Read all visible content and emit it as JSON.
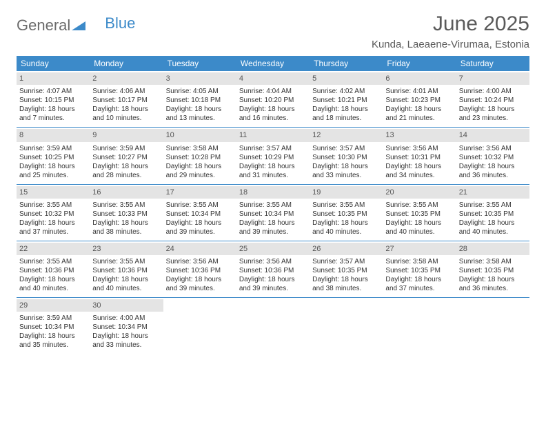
{
  "logo": {
    "part1": "General",
    "part2": "Blue"
  },
  "title": "June 2025",
  "location": "Kunda, Laeaene-Virumaa, Estonia",
  "weekdays": [
    "Sunday",
    "Monday",
    "Tuesday",
    "Wednesday",
    "Thursday",
    "Friday",
    "Saturday"
  ],
  "colors": {
    "header_bg": "#3c8ac9",
    "header_text": "#ffffff",
    "daynum_bg": "#e4e4e4",
    "text": "#333333",
    "rule": "#3c8ac9",
    "background": "#ffffff"
  },
  "fonts": {
    "title_size_pt": 30,
    "subtitle_size_pt": 15,
    "weekday_size_pt": 12,
    "cell_size_pt": 10
  },
  "cell_template": {
    "sunrise_prefix": "Sunrise: ",
    "sunset_prefix": "Sunset: ",
    "daylight_prefix": "Daylight: ",
    "daylight_joiner": " and ",
    "daylight_hours_word": " hours",
    "daylight_minutes_word": " minutes."
  },
  "days": [
    {
      "n": 1,
      "sunrise": "4:07 AM",
      "sunset": "10:15 PM",
      "dl_h": 18,
      "dl_m": 7
    },
    {
      "n": 2,
      "sunrise": "4:06 AM",
      "sunset": "10:17 PM",
      "dl_h": 18,
      "dl_m": 10
    },
    {
      "n": 3,
      "sunrise": "4:05 AM",
      "sunset": "10:18 PM",
      "dl_h": 18,
      "dl_m": 13
    },
    {
      "n": 4,
      "sunrise": "4:04 AM",
      "sunset": "10:20 PM",
      "dl_h": 18,
      "dl_m": 16
    },
    {
      "n": 5,
      "sunrise": "4:02 AM",
      "sunset": "10:21 PM",
      "dl_h": 18,
      "dl_m": 18
    },
    {
      "n": 6,
      "sunrise": "4:01 AM",
      "sunset": "10:23 PM",
      "dl_h": 18,
      "dl_m": 21
    },
    {
      "n": 7,
      "sunrise": "4:00 AM",
      "sunset": "10:24 PM",
      "dl_h": 18,
      "dl_m": 23
    },
    {
      "n": 8,
      "sunrise": "3:59 AM",
      "sunset": "10:25 PM",
      "dl_h": 18,
      "dl_m": 25
    },
    {
      "n": 9,
      "sunrise": "3:59 AM",
      "sunset": "10:27 PM",
      "dl_h": 18,
      "dl_m": 28
    },
    {
      "n": 10,
      "sunrise": "3:58 AM",
      "sunset": "10:28 PM",
      "dl_h": 18,
      "dl_m": 29
    },
    {
      "n": 11,
      "sunrise": "3:57 AM",
      "sunset": "10:29 PM",
      "dl_h": 18,
      "dl_m": 31
    },
    {
      "n": 12,
      "sunrise": "3:57 AM",
      "sunset": "10:30 PM",
      "dl_h": 18,
      "dl_m": 33
    },
    {
      "n": 13,
      "sunrise": "3:56 AM",
      "sunset": "10:31 PM",
      "dl_h": 18,
      "dl_m": 34
    },
    {
      "n": 14,
      "sunrise": "3:56 AM",
      "sunset": "10:32 PM",
      "dl_h": 18,
      "dl_m": 36
    },
    {
      "n": 15,
      "sunrise": "3:55 AM",
      "sunset": "10:32 PM",
      "dl_h": 18,
      "dl_m": 37
    },
    {
      "n": 16,
      "sunrise": "3:55 AM",
      "sunset": "10:33 PM",
      "dl_h": 18,
      "dl_m": 38
    },
    {
      "n": 17,
      "sunrise": "3:55 AM",
      "sunset": "10:34 PM",
      "dl_h": 18,
      "dl_m": 39
    },
    {
      "n": 18,
      "sunrise": "3:55 AM",
      "sunset": "10:34 PM",
      "dl_h": 18,
      "dl_m": 39
    },
    {
      "n": 19,
      "sunrise": "3:55 AM",
      "sunset": "10:35 PM",
      "dl_h": 18,
      "dl_m": 40
    },
    {
      "n": 20,
      "sunrise": "3:55 AM",
      "sunset": "10:35 PM",
      "dl_h": 18,
      "dl_m": 40
    },
    {
      "n": 21,
      "sunrise": "3:55 AM",
      "sunset": "10:35 PM",
      "dl_h": 18,
      "dl_m": 40
    },
    {
      "n": 22,
      "sunrise": "3:55 AM",
      "sunset": "10:36 PM",
      "dl_h": 18,
      "dl_m": 40
    },
    {
      "n": 23,
      "sunrise": "3:55 AM",
      "sunset": "10:36 PM",
      "dl_h": 18,
      "dl_m": 40
    },
    {
      "n": 24,
      "sunrise": "3:56 AM",
      "sunset": "10:36 PM",
      "dl_h": 18,
      "dl_m": 39
    },
    {
      "n": 25,
      "sunrise": "3:56 AM",
      "sunset": "10:36 PM",
      "dl_h": 18,
      "dl_m": 39
    },
    {
      "n": 26,
      "sunrise": "3:57 AM",
      "sunset": "10:35 PM",
      "dl_h": 18,
      "dl_m": 38
    },
    {
      "n": 27,
      "sunrise": "3:58 AM",
      "sunset": "10:35 PM",
      "dl_h": 18,
      "dl_m": 37
    },
    {
      "n": 28,
      "sunrise": "3:58 AM",
      "sunset": "10:35 PM",
      "dl_h": 18,
      "dl_m": 36
    },
    {
      "n": 29,
      "sunrise": "3:59 AM",
      "sunset": "10:34 PM",
      "dl_h": 18,
      "dl_m": 35
    },
    {
      "n": 30,
      "sunrise": "4:00 AM",
      "sunset": "10:34 PM",
      "dl_h": 18,
      "dl_m": 33
    }
  ],
  "grid": {
    "rows": 5,
    "cols": 7,
    "first_weekday_index": 0
  }
}
